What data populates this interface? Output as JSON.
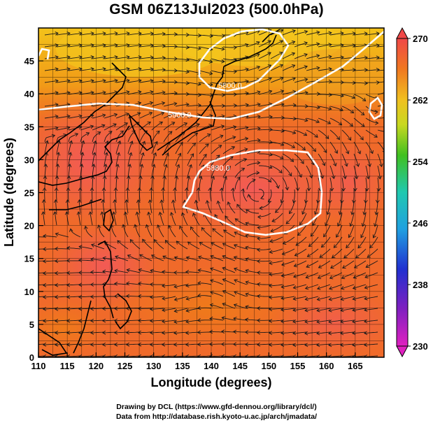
{
  "title": "GSM 06Z13Jul2023 (500.0hPa)",
  "credits": {
    "line1": "Drawing by DCL (https://www.gfd-dennou.org/library/dcl/)",
    "line2": "Data from http://database.rish.kyoto-u.ac.jp/arch/jmadata/"
  },
  "axes": {
    "xlabel": "Longitude (degrees)",
    "ylabel": "Latitude (degrees)",
    "xrange": [
      110,
      170
    ],
    "yrange": [
      0,
      50
    ],
    "xticks": [
      "110",
      "115",
      "120",
      "125",
      "130",
      "135",
      "140",
      "145",
      "150",
      "155",
      "160",
      "165"
    ],
    "yticks": [
      "0",
      "5",
      "10",
      "15",
      "20",
      "25",
      "30",
      "35",
      "40",
      "45"
    ]
  },
  "colorbar": {
    "labels": [
      "270",
      "262",
      "254",
      "246",
      "238",
      "230"
    ],
    "range": [
      230,
      270
    ]
  },
  "contours": {
    "label_5900": "5900.0",
    "label_5880": "5880.0",
    "label_5800": "5800.0"
  },
  "colors": {
    "warm_red": "#f25c4e",
    "orange": "#f0701e",
    "yellow": "#f2c21c",
    "contour": "#ffffff",
    "coastline": "#000000"
  }
}
